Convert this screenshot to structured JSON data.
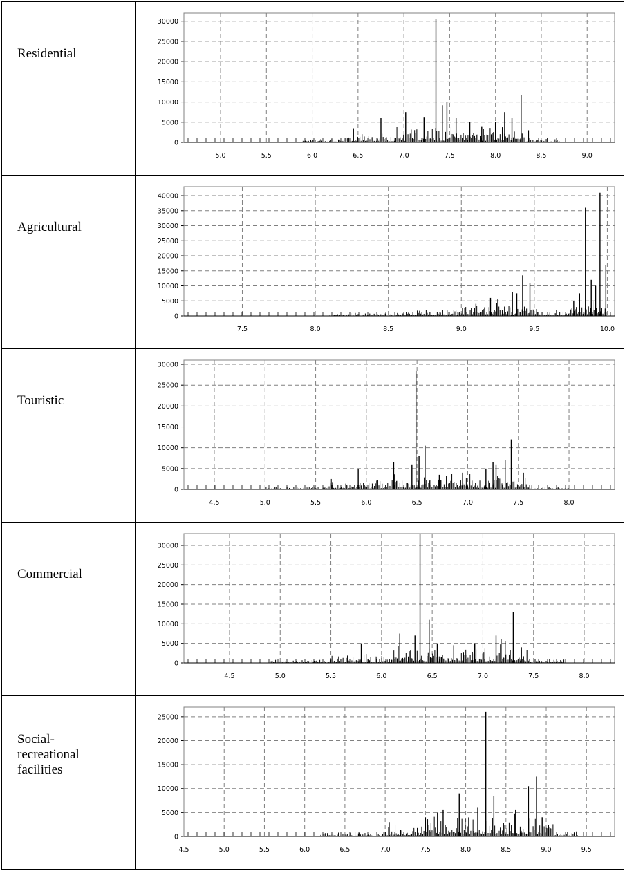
{
  "colors": {
    "bar": "#000000",
    "grid": "#808080",
    "frame": "#808080"
  },
  "chart_data": [
    {
      "type": "bar",
      "label": "Residential",
      "grid": true,
      "xlim": [
        4.6,
        9.3
      ],
      "ylim": [
        0,
        32000
      ],
      "xticks": [
        "5.0",
        "5.5",
        "6.0",
        "6.5",
        "7.0",
        "7.5",
        "8.0",
        "8.5",
        "9.0"
      ],
      "yticks": [
        "0",
        "5000",
        "10000",
        "15000",
        "20000",
        "25000",
        "30000"
      ],
      "peaks": [
        {
          "x": 6.45,
          "y": 3500
        },
        {
          "x": 6.75,
          "y": 6000
        },
        {
          "x": 7.02,
          "y": 7500
        },
        {
          "x": 7.22,
          "y": 6300
        },
        {
          "x": 7.35,
          "y": 30500
        },
        {
          "x": 7.42,
          "y": 9200
        },
        {
          "x": 7.47,
          "y": 10000
        },
        {
          "x": 7.57,
          "y": 6000
        },
        {
          "x": 7.72,
          "y": 5000
        },
        {
          "x": 7.85,
          "y": 4000
        },
        {
          "x": 8.0,
          "y": 5000
        },
        {
          "x": 8.1,
          "y": 7500
        },
        {
          "x": 8.18,
          "y": 6000
        },
        {
          "x": 8.28,
          "y": 11800
        },
        {
          "x": 8.36,
          "y": 3000
        }
      ],
      "bulk": [
        {
          "start": 5.9,
          "end": 6.4,
          "level": 800
        },
        {
          "start": 6.4,
          "end": 6.9,
          "level": 1500
        },
        {
          "start": 6.9,
          "end": 7.7,
          "level": 2500
        },
        {
          "start": 7.7,
          "end": 8.3,
          "level": 2400
        },
        {
          "start": 8.3,
          "end": 8.7,
          "level": 800
        }
      ]
    },
    {
      "type": "bar",
      "label": "Agricultural",
      "grid": true,
      "xlim": [
        7.1,
        10.05
      ],
      "ylim": [
        0,
        43000
      ],
      "xticks": [
        "7.5",
        "8.0",
        "8.5",
        "9.0",
        "9.5",
        "10.0"
      ],
      "yticks": [
        "0",
        "5000",
        "10000",
        "15000",
        "20000",
        "25000",
        "30000",
        "35000",
        "40000"
      ],
      "peaks": [
        {
          "x": 9.1,
          "y": 4000
        },
        {
          "x": 9.2,
          "y": 6000
        },
        {
          "x": 9.25,
          "y": 5500
        },
        {
          "x": 9.35,
          "y": 8000
        },
        {
          "x": 9.38,
          "y": 7500
        },
        {
          "x": 9.42,
          "y": 13500
        },
        {
          "x": 9.47,
          "y": 11000
        },
        {
          "x": 9.77,
          "y": 5000
        },
        {
          "x": 9.81,
          "y": 7500
        },
        {
          "x": 9.85,
          "y": 36000
        },
        {
          "x": 9.89,
          "y": 12000
        },
        {
          "x": 9.92,
          "y": 10000
        },
        {
          "x": 9.95,
          "y": 41000
        },
        {
          "x": 9.99,
          "y": 17000
        }
      ],
      "bulk": [
        {
          "start": 8.1,
          "end": 8.6,
          "level": 600
        },
        {
          "start": 8.6,
          "end": 9.0,
          "level": 1500
        },
        {
          "start": 9.0,
          "end": 9.5,
          "level": 3000
        },
        {
          "start": 9.5,
          "end": 9.75,
          "level": 1500
        },
        {
          "start": 9.75,
          "end": 10.0,
          "level": 3500
        }
      ]
    },
    {
      "type": "bar",
      "label": "Touristic",
      "grid": true,
      "xlim": [
        4.2,
        8.45
      ],
      "ylim": [
        0,
        31000
      ],
      "xticks": [
        "4.5",
        "5.0",
        "5.5",
        "6.0",
        "6.5",
        "7.0",
        "7.5",
        "8.0"
      ],
      "yticks": [
        "0",
        "5000",
        "10000",
        "15000",
        "20000",
        "25000",
        "30000"
      ],
      "peaks": [
        {
          "x": 5.92,
          "y": 5000
        },
        {
          "x": 6.27,
          "y": 6500
        },
        {
          "x": 6.45,
          "y": 6000
        },
        {
          "x": 6.49,
          "y": 28500
        },
        {
          "x": 6.52,
          "y": 8000
        },
        {
          "x": 6.58,
          "y": 10500
        },
        {
          "x": 6.72,
          "y": 3500
        },
        {
          "x": 6.95,
          "y": 4000
        },
        {
          "x": 7.18,
          "y": 5000
        },
        {
          "x": 7.25,
          "y": 6500
        },
        {
          "x": 7.28,
          "y": 6000
        },
        {
          "x": 7.37,
          "y": 7000
        },
        {
          "x": 7.43,
          "y": 12000
        },
        {
          "x": 7.55,
          "y": 4000
        }
      ],
      "bulk": [
        {
          "start": 5.0,
          "end": 5.6,
          "level": 500
        },
        {
          "start": 5.6,
          "end": 6.2,
          "level": 1500
        },
        {
          "start": 6.2,
          "end": 7.0,
          "level": 2500
        },
        {
          "start": 7.0,
          "end": 7.6,
          "level": 2500
        },
        {
          "start": 7.6,
          "end": 8.0,
          "level": 600
        }
      ]
    },
    {
      "type": "bar",
      "label": "Commercial",
      "grid": true,
      "xlim": [
        4.05,
        8.3
      ],
      "ylim": [
        0,
        33000
      ],
      "xticks": [
        "4.5",
        "5.0",
        "5.5",
        "6.0",
        "6.5",
        "7.0",
        "7.5",
        "8.0"
      ],
      "yticks": [
        "0",
        "5000",
        "10000",
        "15000",
        "20000",
        "25000",
        "30000"
      ],
      "peaks": [
        {
          "x": 5.8,
          "y": 5000
        },
        {
          "x": 6.18,
          "y": 7500
        },
        {
          "x": 6.33,
          "y": 7000
        },
        {
          "x": 6.38,
          "y": 33000
        },
        {
          "x": 6.47,
          "y": 11000
        },
        {
          "x": 6.55,
          "y": 5000
        },
        {
          "x": 6.92,
          "y": 5000
        },
        {
          "x": 7.13,
          "y": 7000
        },
        {
          "x": 7.18,
          "y": 6000
        },
        {
          "x": 7.22,
          "y": 5500
        },
        {
          "x": 7.3,
          "y": 13000
        },
        {
          "x": 7.38,
          "y": 4000
        }
      ],
      "bulk": [
        {
          "start": 4.9,
          "end": 5.5,
          "level": 500
        },
        {
          "start": 5.5,
          "end": 6.1,
          "level": 1500
        },
        {
          "start": 6.1,
          "end": 6.9,
          "level": 2800
        },
        {
          "start": 6.9,
          "end": 7.45,
          "level": 2800
        },
        {
          "start": 7.45,
          "end": 7.8,
          "level": 700
        }
      ]
    },
    {
      "type": "bar",
      "label": "Social-\nrecreational\nfacilities",
      "label_lines": [
        "Social-",
        "recreational",
        "facilities"
      ],
      "grid": true,
      "xlim": [
        4.5,
        9.85
      ],
      "ylim": [
        0,
        27000
      ],
      "xticks": [
        "4.5",
        "5.0",
        "5.5",
        "6.0",
        "6.5",
        "7.0",
        "7.5",
        "8.0",
        "8.5",
        "9.0",
        "9.5"
      ],
      "yticks": [
        "0",
        "5000",
        "10000",
        "15000",
        "20000",
        "25000"
      ],
      "peaks": [
        {
          "x": 7.05,
          "y": 3000
        },
        {
          "x": 7.5,
          "y": 4000
        },
        {
          "x": 7.65,
          "y": 5000
        },
        {
          "x": 7.72,
          "y": 5500
        },
        {
          "x": 7.92,
          "y": 9000
        },
        {
          "x": 8.15,
          "y": 6000
        },
        {
          "x": 8.25,
          "y": 26000
        },
        {
          "x": 8.35,
          "y": 8500
        },
        {
          "x": 8.62,
          "y": 5500
        },
        {
          "x": 8.78,
          "y": 10500
        },
        {
          "x": 8.88,
          "y": 12500
        },
        {
          "x": 8.95,
          "y": 4000
        }
      ],
      "bulk": [
        {
          "start": 6.2,
          "end": 7.0,
          "level": 700
        },
        {
          "start": 7.0,
          "end": 7.5,
          "level": 1500
        },
        {
          "start": 7.5,
          "end": 8.1,
          "level": 3000
        },
        {
          "start": 8.1,
          "end": 8.7,
          "level": 3000
        },
        {
          "start": 8.7,
          "end": 9.1,
          "level": 2500
        },
        {
          "start": 9.1,
          "end": 9.4,
          "level": 600
        }
      ]
    }
  ]
}
